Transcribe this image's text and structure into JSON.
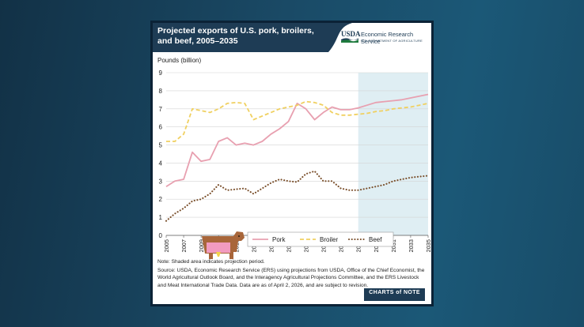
{
  "card": {
    "title": "Projected exports of U.S. pork, broilers, and beef, 2005–2035",
    "logo_text": "USDA",
    "org_name": "Economic Research Service",
    "org_dept": "U.S. DEPARTMENT OF AGRICULTURE",
    "note": "Note: Shaded area indicates projection period.",
    "source": "Source: USDA, Economic Research Service (ERS) using projections from USDA, Office of the Chief Economist, the World Agricultural Outlook Board, and the Interagency Agricultural Projections Committee, and the ERS Livestock and Meat International Trade Data. Data are as of April 2, 2026, and are subject to revision.",
    "brand": "CHARTS of NOTE"
  },
  "colors": {
    "pork": "#e8a0b0",
    "broiler": "#f0d060",
    "beef": "#7a4f2b",
    "projection_shade": "#dfeef3",
    "header": "#1e3c55"
  },
  "chart_data": {
    "type": "line",
    "title": "Projected exports of U.S. pork, broilers, and beef, 2005–2035",
    "ylabel": "Pounds (billion)",
    "xlabel": "",
    "ylim": [
      0,
      9
    ],
    "yticks": [
      0,
      1,
      2,
      3,
      4,
      5,
      6,
      7,
      8,
      9
    ],
    "xlim": [
      2005,
      2035
    ],
    "xticks": [
      2005,
      2007,
      2009,
      2011,
      2013,
      2015,
      2017,
      2019,
      2021,
      2023,
      2025,
      2027,
      2029,
      2031,
      2033,
      2035
    ],
    "grid": "horizontal",
    "legend_position": "bottom-center",
    "projection_period": [
      2027,
      2035
    ],
    "x": [
      2005,
      2006,
      2007,
      2008,
      2009,
      2010,
      2011,
      2012,
      2013,
      2014,
      2015,
      2016,
      2017,
      2018,
      2019,
      2020,
      2021,
      2022,
      2023,
      2024,
      2025,
      2026,
      2027,
      2028,
      2029,
      2030,
      2031,
      2032,
      2033,
      2034,
      2035
    ],
    "series": [
      {
        "name": "Pork",
        "style": "solid",
        "values": [
          2.7,
          3.0,
          3.1,
          4.6,
          4.1,
          4.2,
          5.2,
          5.4,
          5.0,
          5.1,
          5.0,
          5.2,
          5.6,
          5.9,
          6.3,
          7.3,
          7.0,
          6.4,
          6.8,
          7.1,
          6.95,
          6.95,
          7.05,
          7.2,
          7.35,
          7.4,
          7.45,
          7.5,
          7.6,
          7.7,
          7.8
        ]
      },
      {
        "name": "Broiler",
        "style": "dashed",
        "values": [
          5.2,
          5.2,
          5.6,
          7.0,
          6.9,
          6.8,
          7.0,
          7.3,
          7.35,
          7.3,
          6.4,
          6.6,
          6.8,
          7.0,
          7.1,
          7.2,
          7.4,
          7.35,
          7.2,
          6.8,
          6.65,
          6.65,
          6.7,
          6.75,
          6.85,
          6.9,
          7.0,
          7.05,
          7.1,
          7.2,
          7.3
        ]
      },
      {
        "name": "Beef",
        "style": "dotted",
        "values": [
          0.8,
          1.2,
          1.5,
          1.9,
          2.0,
          2.3,
          2.8,
          2.5,
          2.55,
          2.6,
          2.3,
          2.6,
          2.9,
          3.1,
          3.0,
          2.95,
          3.4,
          3.55,
          3.0,
          3.0,
          2.6,
          2.5,
          2.5,
          2.6,
          2.7,
          2.8,
          3.0,
          3.1,
          3.2,
          3.25,
          3.3
        ]
      }
    ]
  }
}
